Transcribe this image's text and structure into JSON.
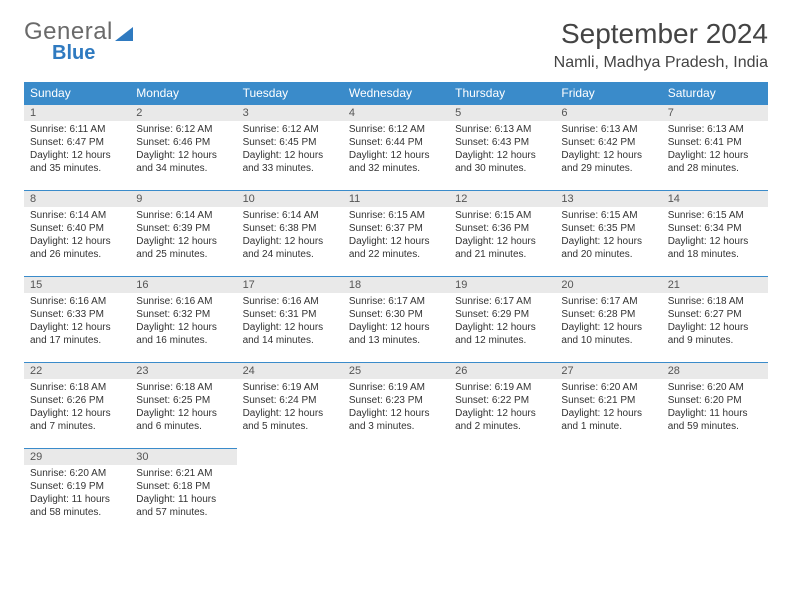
{
  "logo": {
    "word1": "General",
    "word2": "Blue"
  },
  "header": {
    "title": "September 2024",
    "location": "Namli, Madhya Pradesh, India"
  },
  "colors": {
    "header_bg": "#3a8bca",
    "header_text": "#ffffff",
    "daynum_bg": "#e9e9e9",
    "border": "#3a8bca",
    "logo_gray": "#6a6a6a",
    "logo_blue": "#2f7ac0"
  },
  "day_names": [
    "Sunday",
    "Monday",
    "Tuesday",
    "Wednesday",
    "Thursday",
    "Friday",
    "Saturday"
  ],
  "weeks": [
    [
      {
        "n": "1",
        "sr": "Sunrise: 6:11 AM",
        "ss": "Sunset: 6:47 PM",
        "d1": "Daylight: 12 hours",
        "d2": "and 35 minutes."
      },
      {
        "n": "2",
        "sr": "Sunrise: 6:12 AM",
        "ss": "Sunset: 6:46 PM",
        "d1": "Daylight: 12 hours",
        "d2": "and 34 minutes."
      },
      {
        "n": "3",
        "sr": "Sunrise: 6:12 AM",
        "ss": "Sunset: 6:45 PM",
        "d1": "Daylight: 12 hours",
        "d2": "and 33 minutes."
      },
      {
        "n": "4",
        "sr": "Sunrise: 6:12 AM",
        "ss": "Sunset: 6:44 PM",
        "d1": "Daylight: 12 hours",
        "d2": "and 32 minutes."
      },
      {
        "n": "5",
        "sr": "Sunrise: 6:13 AM",
        "ss": "Sunset: 6:43 PM",
        "d1": "Daylight: 12 hours",
        "d2": "and 30 minutes."
      },
      {
        "n": "6",
        "sr": "Sunrise: 6:13 AM",
        "ss": "Sunset: 6:42 PM",
        "d1": "Daylight: 12 hours",
        "d2": "and 29 minutes."
      },
      {
        "n": "7",
        "sr": "Sunrise: 6:13 AM",
        "ss": "Sunset: 6:41 PM",
        "d1": "Daylight: 12 hours",
        "d2": "and 28 minutes."
      }
    ],
    [
      {
        "n": "8",
        "sr": "Sunrise: 6:14 AM",
        "ss": "Sunset: 6:40 PM",
        "d1": "Daylight: 12 hours",
        "d2": "and 26 minutes."
      },
      {
        "n": "9",
        "sr": "Sunrise: 6:14 AM",
        "ss": "Sunset: 6:39 PM",
        "d1": "Daylight: 12 hours",
        "d2": "and 25 minutes."
      },
      {
        "n": "10",
        "sr": "Sunrise: 6:14 AM",
        "ss": "Sunset: 6:38 PM",
        "d1": "Daylight: 12 hours",
        "d2": "and 24 minutes."
      },
      {
        "n": "11",
        "sr": "Sunrise: 6:15 AM",
        "ss": "Sunset: 6:37 PM",
        "d1": "Daylight: 12 hours",
        "d2": "and 22 minutes."
      },
      {
        "n": "12",
        "sr": "Sunrise: 6:15 AM",
        "ss": "Sunset: 6:36 PM",
        "d1": "Daylight: 12 hours",
        "d2": "and 21 minutes."
      },
      {
        "n": "13",
        "sr": "Sunrise: 6:15 AM",
        "ss": "Sunset: 6:35 PM",
        "d1": "Daylight: 12 hours",
        "d2": "and 20 minutes."
      },
      {
        "n": "14",
        "sr": "Sunrise: 6:15 AM",
        "ss": "Sunset: 6:34 PM",
        "d1": "Daylight: 12 hours",
        "d2": "and 18 minutes."
      }
    ],
    [
      {
        "n": "15",
        "sr": "Sunrise: 6:16 AM",
        "ss": "Sunset: 6:33 PM",
        "d1": "Daylight: 12 hours",
        "d2": "and 17 minutes."
      },
      {
        "n": "16",
        "sr": "Sunrise: 6:16 AM",
        "ss": "Sunset: 6:32 PM",
        "d1": "Daylight: 12 hours",
        "d2": "and 16 minutes."
      },
      {
        "n": "17",
        "sr": "Sunrise: 6:16 AM",
        "ss": "Sunset: 6:31 PM",
        "d1": "Daylight: 12 hours",
        "d2": "and 14 minutes."
      },
      {
        "n": "18",
        "sr": "Sunrise: 6:17 AM",
        "ss": "Sunset: 6:30 PM",
        "d1": "Daylight: 12 hours",
        "d2": "and 13 minutes."
      },
      {
        "n": "19",
        "sr": "Sunrise: 6:17 AM",
        "ss": "Sunset: 6:29 PM",
        "d1": "Daylight: 12 hours",
        "d2": "and 12 minutes."
      },
      {
        "n": "20",
        "sr": "Sunrise: 6:17 AM",
        "ss": "Sunset: 6:28 PM",
        "d1": "Daylight: 12 hours",
        "d2": "and 10 minutes."
      },
      {
        "n": "21",
        "sr": "Sunrise: 6:18 AM",
        "ss": "Sunset: 6:27 PM",
        "d1": "Daylight: 12 hours",
        "d2": "and 9 minutes."
      }
    ],
    [
      {
        "n": "22",
        "sr": "Sunrise: 6:18 AM",
        "ss": "Sunset: 6:26 PM",
        "d1": "Daylight: 12 hours",
        "d2": "and 7 minutes."
      },
      {
        "n": "23",
        "sr": "Sunrise: 6:18 AM",
        "ss": "Sunset: 6:25 PM",
        "d1": "Daylight: 12 hours",
        "d2": "and 6 minutes."
      },
      {
        "n": "24",
        "sr": "Sunrise: 6:19 AM",
        "ss": "Sunset: 6:24 PM",
        "d1": "Daylight: 12 hours",
        "d2": "and 5 minutes."
      },
      {
        "n": "25",
        "sr": "Sunrise: 6:19 AM",
        "ss": "Sunset: 6:23 PM",
        "d1": "Daylight: 12 hours",
        "d2": "and 3 minutes."
      },
      {
        "n": "26",
        "sr": "Sunrise: 6:19 AM",
        "ss": "Sunset: 6:22 PM",
        "d1": "Daylight: 12 hours",
        "d2": "and 2 minutes."
      },
      {
        "n": "27",
        "sr": "Sunrise: 6:20 AM",
        "ss": "Sunset: 6:21 PM",
        "d1": "Daylight: 12 hours",
        "d2": "and 1 minute."
      },
      {
        "n": "28",
        "sr": "Sunrise: 6:20 AM",
        "ss": "Sunset: 6:20 PM",
        "d1": "Daylight: 11 hours",
        "d2": "and 59 minutes."
      }
    ],
    [
      {
        "n": "29",
        "sr": "Sunrise: 6:20 AM",
        "ss": "Sunset: 6:19 PM",
        "d1": "Daylight: 11 hours",
        "d2": "and 58 minutes."
      },
      {
        "n": "30",
        "sr": "Sunrise: 6:21 AM",
        "ss": "Sunset: 6:18 PM",
        "d1": "Daylight: 11 hours",
        "d2": "and 57 minutes."
      },
      {
        "empty": true
      },
      {
        "empty": true
      },
      {
        "empty": true
      },
      {
        "empty": true
      },
      {
        "empty": true
      }
    ]
  ]
}
